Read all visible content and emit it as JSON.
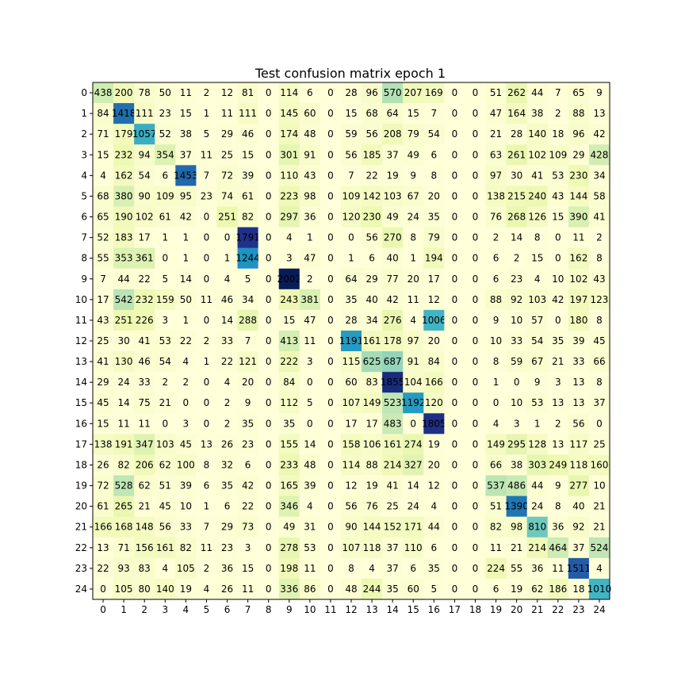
{
  "chart_data": {
    "type": "heatmap",
    "title": "Test confusion matrix epoch 1",
    "xlabel": "",
    "ylabel": "",
    "colormap": "YlGnBu",
    "x_ticks": [
      "0",
      "1",
      "2",
      "3",
      "4",
      "5",
      "6",
      "7",
      "8",
      "9",
      "10",
      "11",
      "12",
      "13",
      "14",
      "15",
      "16",
      "17",
      "18",
      "19",
      "20",
      "21",
      "22",
      "23",
      "24"
    ],
    "y_ticks": [
      "0",
      "1",
      "2",
      "3",
      "4",
      "5",
      "6",
      "7",
      "8",
      "9",
      "10",
      "11",
      "12",
      "13",
      "14",
      "15",
      "16",
      "17",
      "18",
      "19",
      "20",
      "21",
      "22",
      "23",
      "24"
    ],
    "matrix": [
      [
        438,
        200,
        78,
        50,
        11,
        2,
        12,
        81,
        0,
        114,
        6,
        0,
        28,
        96,
        570,
        207,
        169,
        0,
        0,
        51,
        262,
        44,
        7,
        65,
        9
      ],
      [
        84,
        1418,
        111,
        23,
        15,
        1,
        11,
        111,
        0,
        145,
        60,
        0,
        15,
        68,
        64,
        15,
        7,
        0,
        0,
        47,
        164,
        38,
        2,
        88,
        13
      ],
      [
        71,
        179,
        1057,
        52,
        38,
        5,
        29,
        46,
        0,
        174,
        48,
        0,
        59,
        56,
        208,
        79,
        54,
        0,
        0,
        21,
        28,
        140,
        18,
        96,
        42
      ],
      [
        15,
        232,
        94,
        354,
        37,
        11,
        25,
        15,
        0,
        301,
        91,
        0,
        56,
        185,
        37,
        49,
        6,
        0,
        0,
        63,
        261,
        102,
        109,
        29,
        428
      ],
      [
        4,
        162,
        54,
        6,
        1453,
        7,
        72,
        39,
        0,
        110,
        43,
        0,
        7,
        22,
        19,
        9,
        8,
        0,
        0,
        97,
        30,
        41,
        53,
        230,
        34
      ],
      [
        68,
        380,
        90,
        109,
        95,
        23,
        74,
        61,
        0,
        223,
        98,
        0,
        109,
        142,
        103,
        67,
        20,
        0,
        0,
        138,
        215,
        240,
        43,
        144,
        58
      ],
      [
        65,
        190,
        102,
        61,
        42,
        0,
        251,
        82,
        0,
        297,
        36,
        0,
        120,
        230,
        49,
        24,
        35,
        0,
        0,
        76,
        268,
        126,
        15,
        390,
        41
      ],
      [
        52,
        183,
        17,
        1,
        1,
        0,
        0,
        1791,
        0,
        4,
        1,
        0,
        0,
        56,
        270,
        8,
        79,
        0,
        0,
        2,
        14,
        8,
        0,
        11,
        2
      ],
      [
        55,
        353,
        361,
        0,
        1,
        0,
        1,
        1244,
        0,
        3,
        47,
        0,
        1,
        6,
        40,
        1,
        194,
        0,
        0,
        6,
        2,
        15,
        0,
        162,
        8
      ],
      [
        7,
        44,
        22,
        5,
        14,
        0,
        4,
        5,
        0,
        2002,
        2,
        0,
        64,
        29,
        77,
        20,
        17,
        0,
        0,
        6,
        23,
        4,
        10,
        102,
        43
      ],
      [
        17,
        542,
        232,
        159,
        50,
        11,
        46,
        34,
        0,
        243,
        381,
        0,
        35,
        40,
        42,
        11,
        12,
        0,
        0,
        88,
        92,
        103,
        42,
        197,
        123
      ],
      [
        43,
        251,
        226,
        3,
        1,
        0,
        14,
        288,
        0,
        15,
        47,
        0,
        28,
        34,
        276,
        4,
        1006,
        0,
        0,
        9,
        10,
        57,
        0,
        180,
        8
      ],
      [
        25,
        30,
        41,
        53,
        22,
        2,
        33,
        7,
        0,
        413,
        11,
        0,
        1191,
        161,
        178,
        97,
        20,
        0,
        0,
        10,
        33,
        54,
        35,
        39,
        45
      ],
      [
        41,
        130,
        46,
        54,
        4,
        1,
        22,
        121,
        0,
        222,
        3,
        0,
        115,
        625,
        687,
        91,
        84,
        0,
        0,
        8,
        59,
        67,
        21,
        33,
        66
      ],
      [
        29,
        24,
        33,
        2,
        2,
        0,
        4,
        20,
        0,
        84,
        0,
        0,
        60,
        83,
        1855,
        104,
        166,
        0,
        0,
        1,
        0,
        9,
        3,
        13,
        8
      ],
      [
        45,
        14,
        75,
        21,
        0,
        0,
        2,
        9,
        0,
        112,
        5,
        0,
        107,
        149,
        523,
        1192,
        120,
        0,
        0,
        0,
        10,
        53,
        13,
        13,
        37
      ],
      [
        15,
        11,
        11,
        0,
        3,
        0,
        2,
        35,
        0,
        35,
        0,
        0,
        17,
        17,
        483,
        0,
        1805,
        0,
        0,
        4,
        3,
        1,
        2,
        56,
        0
      ],
      [
        138,
        191,
        347,
        103,
        45,
        13,
        26,
        23,
        0,
        155,
        14,
        0,
        158,
        106,
        161,
        274,
        19,
        0,
        0,
        149,
        295,
        128,
        13,
        117,
        25
      ],
      [
        26,
        82,
        206,
        62,
        100,
        8,
        32,
        6,
        0,
        233,
        48,
        0,
        114,
        88,
        214,
        327,
        20,
        0,
        0,
        66,
        38,
        303,
        249,
        118,
        160
      ],
      [
        72,
        528,
        62,
        51,
        39,
        6,
        35,
        42,
        0,
        165,
        39,
        0,
        12,
        19,
        41,
        14,
        12,
        0,
        0,
        537,
        486,
        44,
        9,
        277,
        10
      ],
      [
        61,
        265,
        21,
        45,
        10,
        1,
        6,
        22,
        0,
        346,
        4,
        0,
        56,
        76,
        25,
        24,
        4,
        0,
        0,
        51,
        1390,
        24,
        8,
        40,
        21
      ],
      [
        166,
        168,
        148,
        56,
        33,
        7,
        29,
        73,
        0,
        49,
        31,
        0,
        90,
        144,
        152,
        171,
        44,
        0,
        0,
        82,
        98,
        810,
        36,
        92,
        21
      ],
      [
        13,
        71,
        156,
        161,
        82,
        11,
        23,
        3,
        0,
        278,
        53,
        0,
        107,
        118,
        37,
        110,
        6,
        0,
        0,
        11,
        21,
        214,
        464,
        37,
        524
      ],
      [
        22,
        93,
        83,
        4,
        105,
        2,
        36,
        15,
        0,
        198,
        11,
        0,
        8,
        4,
        37,
        6,
        35,
        0,
        0,
        224,
        55,
        36,
        11,
        1511,
        4
      ],
      [
        0,
        105,
        80,
        140,
        19,
        4,
        26,
        11,
        0,
        336,
        86,
        0,
        48,
        244,
        35,
        60,
        5,
        0,
        0,
        6,
        19,
        62,
        186,
        18,
        1010
      ]
    ]
  }
}
